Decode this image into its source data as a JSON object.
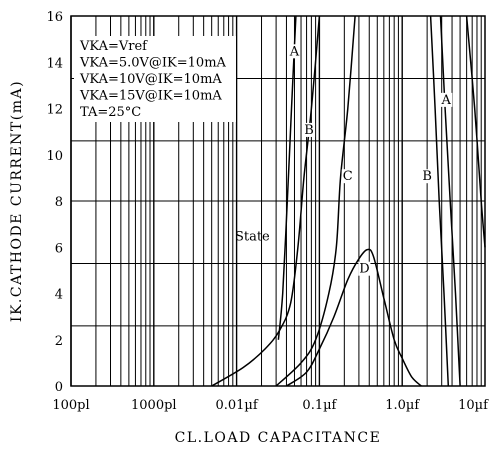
{
  "chart_data": {
    "type": "line",
    "title": "",
    "xlabel": "CL.LOAD CAPACITANCE",
    "ylabel": "IK.CATHODE CURRENT(mA)",
    "x_scale": "log",
    "x_unit": "µF",
    "xlim": [
      0.0001,
      10
    ],
    "ylim": [
      0,
      16
    ],
    "grid": true,
    "x_tick_values": [
      0.0001,
      0.001,
      0.01,
      0.1,
      1,
      10
    ],
    "x_tick_labels": [
      "100pl",
      "1000pl",
      "0.01µf",
      "0.1µf",
      "1.0µf",
      "10µf"
    ],
    "y_ticks": [
      0,
      2,
      4,
      6,
      8,
      10,
      12,
      14,
      16
    ],
    "horizontal_gridlines": [
      2.6,
      5.3,
      8.0,
      10.6,
      13.3,
      16
    ],
    "legend_lines": [
      "VKA=Vref",
      "VKA=5.0V@IK=10mA",
      "VKA=10V@IK=10mA",
      "VKA=15V@IK=10mA",
      "TA=25°C"
    ],
    "legend_position": "top-left",
    "annotations": [
      {
        "text": "State",
        "x": 0.0155,
        "y": 6.3
      }
    ],
    "series": [
      {
        "name": "A",
        "label_points": [
          [
            0.05,
            14.3
          ],
          [
            3.4,
            12.2
          ]
        ],
        "segments": [
          [
            [
              0.032,
              2.0
            ],
            [
              0.036,
              4.0
            ],
            [
              0.041,
              8.0
            ],
            [
              0.046,
              12.0
            ],
            [
              0.052,
              16.0
            ]
          ],
          [
            [
              2.9,
              16.0
            ],
            [
              3.3,
              12.0
            ],
            [
              3.8,
              8.0
            ],
            [
              4.4,
              4.0
            ],
            [
              5.0,
              0.0
            ]
          ]
        ]
      },
      {
        "name": "B",
        "label_points": [
          [
            0.075,
            10.9
          ],
          [
            2.0,
            8.9
          ]
        ],
        "segments": [
          [
            [
              0.005,
              0.0
            ],
            [
              0.012,
              0.8
            ],
            [
              0.022,
              1.6
            ],
            [
              0.033,
              2.4
            ],
            [
              0.045,
              3.6
            ],
            [
              0.055,
              6.0
            ],
            [
              0.065,
              9.0
            ],
            [
              0.08,
              12.0
            ],
            [
              0.1,
              16.0
            ]
          ],
          [
            [
              2.2,
              16.0
            ],
            [
              2.5,
              12.0
            ],
            [
              2.8,
              8.0
            ],
            [
              3.2,
              4.0
            ],
            [
              3.6,
              0.0
            ]
          ]
        ]
      },
      {
        "name": "C",
        "label_points": [
          [
            0.22,
            8.9
          ]
        ],
        "segments": [
          [
            [
              0.03,
              0.0
            ],
            [
              0.06,
              1.0
            ],
            [
              0.09,
              2.0
            ],
            [
              0.13,
              4.0
            ],
            [
              0.16,
              6.0
            ],
            [
              0.18,
              9.0
            ],
            [
              0.22,
              12.0
            ],
            [
              0.27,
              16.0
            ]
          ],
          [
            [
              6.0,
              16.0
            ],
            [
              7.5,
              12.0
            ],
            [
              9.0,
              8.0
            ],
            [
              10.0,
              6.0
            ]
          ]
        ]
      },
      {
        "name": "D",
        "label_points": [
          [
            0.35,
            4.9
          ]
        ],
        "segments": [
          [
            [
              0.04,
              0.0
            ],
            [
              0.07,
              0.6
            ],
            [
              0.1,
              1.6
            ],
            [
              0.15,
              3.0
            ],
            [
              0.22,
              4.6
            ],
            [
              0.3,
              5.5
            ],
            [
              0.38,
              5.9
            ],
            [
              0.45,
              5.6
            ],
            [
              0.6,
              3.8
            ],
            [
              0.8,
              2.0
            ],
            [
              1.0,
              1.2
            ],
            [
              1.3,
              0.4
            ],
            [
              1.7,
              0.0
            ]
          ]
        ]
      }
    ]
  }
}
